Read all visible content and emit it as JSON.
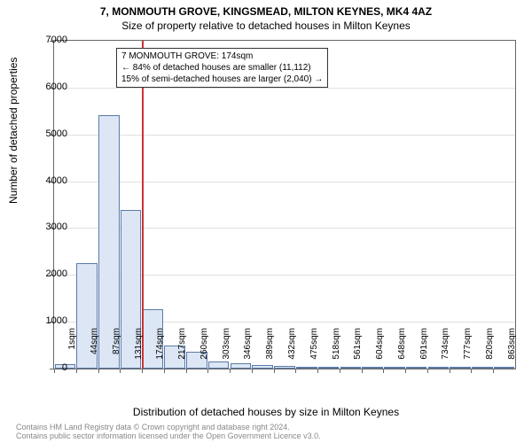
{
  "title_main": "7, MONMOUTH GROVE, KINGSMEAD, MILTON KEYNES, MK4 4AZ",
  "title_sub": "Size of property relative to detached houses in Milton Keynes",
  "y_axis_label": "Number of detached properties",
  "x_axis_label": "Distribution of detached houses by size in Milton Keynes",
  "footer_line1": "Contains HM Land Registry data © Crown copyright and database right 2024.",
  "footer_line2": "Contains public sector information licensed under the Open Government Licence v3.0.",
  "chart": {
    "type": "histogram",
    "background_color": "#ffffff",
    "grid_color": "#e0e0e0",
    "border_color": "#666666",
    "bar_fill": "#dce6f5",
    "bar_border": "#5b7ba8",
    "ref_line_color": "#cc3333",
    "ylim": [
      0,
      7000
    ],
    "y_ticks": [
      0,
      1000,
      2000,
      3000,
      4000,
      5000,
      6000,
      7000
    ],
    "x_tick_labels": [
      "1sqm",
      "44sqm",
      "87sqm",
      "131sqm",
      "174sqm",
      "217sqm",
      "260sqm",
      "303sqm",
      "346sqm",
      "389sqm",
      "432sqm",
      "475sqm",
      "518sqm",
      "561sqm",
      "604sqm",
      "648sqm",
      "691sqm",
      "734sqm",
      "777sqm",
      "820sqm",
      "863sqm"
    ],
    "bar_values": [
      95,
      2250,
      5420,
      3390,
      1270,
      495,
      360,
      150,
      120,
      80,
      50,
      40,
      30,
      20,
      15,
      10,
      10,
      8,
      5,
      5,
      3
    ],
    "ref_bin_index": 4,
    "title_fontsize": 12,
    "label_fontsize": 12,
    "tick_fontsize": 10
  },
  "info_box": {
    "line1": "7 MONMOUTH GROVE: 174sqm",
    "line2": "← 84% of detached houses are smaller (11,112)",
    "line3": "15% of semi-detached houses are larger (2,040) →",
    "border_color": "#333333",
    "background_color": "#ffffff",
    "fontsize": 10
  }
}
